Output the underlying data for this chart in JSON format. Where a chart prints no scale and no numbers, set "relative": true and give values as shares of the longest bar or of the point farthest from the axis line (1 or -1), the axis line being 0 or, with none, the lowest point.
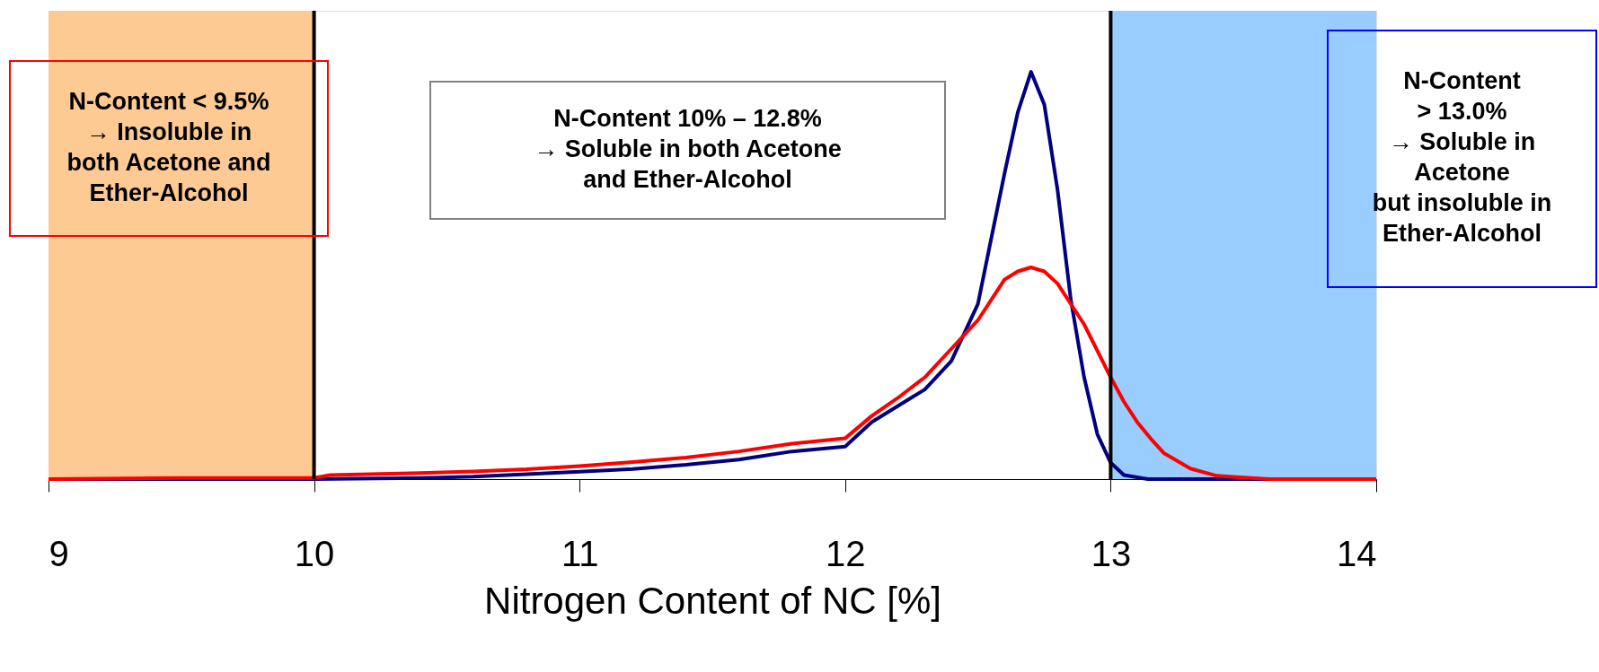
{
  "chart_data": {
    "type": "line",
    "relative": true,
    "xlabel": "Nitrogen Content of NC [%]",
    "xlim": [
      9,
      14
    ],
    "xticks": [
      9,
      10,
      11,
      12,
      13,
      14
    ],
    "grid": false,
    "marker": "none",
    "line_style": "solid",
    "series": [
      {
        "color": "#000080",
        "x": [
          9.0,
          9.5,
          10.0,
          10.4,
          10.6,
          10.8,
          11.0,
          11.2,
          11.4,
          11.6,
          11.8,
          12.0,
          12.1,
          12.2,
          12.3,
          12.4,
          12.5,
          12.55,
          12.6,
          12.65,
          12.7,
          12.75,
          12.8,
          12.85,
          12.9,
          12.95,
          13.0,
          13.05,
          13.14,
          13.3,
          13.6,
          14.0
        ],
        "values": [
          0,
          0,
          0,
          0.003,
          0.006,
          0.012,
          0.018,
          0.025,
          0.035,
          0.048,
          0.068,
          0.08,
          0.14,
          0.18,
          0.22,
          0.29,
          0.43,
          0.59,
          0.75,
          0.9,
          1.0,
          0.92,
          0.71,
          0.44,
          0.25,
          0.11,
          0.04,
          0.01,
          0,
          0,
          0,
          0
        ]
      },
      {
        "color": "#ff0000",
        "x": [
          9.0,
          9.5,
          10.0,
          10.06,
          10.4,
          10.6,
          10.8,
          11.0,
          11.2,
          11.4,
          11.6,
          11.8,
          12.0,
          12.1,
          12.2,
          12.3,
          12.4,
          12.5,
          12.6,
          12.65,
          12.7,
          12.75,
          12.8,
          12.9,
          13.0,
          13.05,
          13.1,
          13.15,
          13.2,
          13.3,
          13.4,
          13.5,
          13.6,
          14.0
        ],
        "values": [
          0,
          0.003,
          0.003,
          0.01,
          0.015,
          0.019,
          0.024,
          0.032,
          0.042,
          0.053,
          0.068,
          0.087,
          0.1,
          0.155,
          0.2,
          0.25,
          0.32,
          0.39,
          0.49,
          0.51,
          0.52,
          0.51,
          0.48,
          0.38,
          0.25,
          0.19,
          0.14,
          0.1,
          0.064,
          0.026,
          0.008,
          0.004,
          0,
          0
        ]
      }
    ],
    "bands": [
      {
        "axis": "x",
        "from": 9,
        "to": 10,
        "color": "#fdca94"
      },
      {
        "axis": "x",
        "from": 13,
        "to": 14,
        "color": "#99ccff"
      }
    ],
    "ref_lines": [
      {
        "axis": "x",
        "value": 10,
        "color": "#000000"
      },
      {
        "axis": "x",
        "value": 13,
        "color": "#000000"
      }
    ],
    "annotations": [
      "N-Content < 9.5%\n→ Insoluble in\nboth Acetone and\nEther-Alcohol",
      "N-Content 10% – 12.8%\n→ Soluble in both Acetone\nand Ether-Alcohol",
      "N-Content\n> 13.0%\n→ Soluble in\nAcetone\nbut insoluble in\nEther-Alcohol"
    ]
  }
}
